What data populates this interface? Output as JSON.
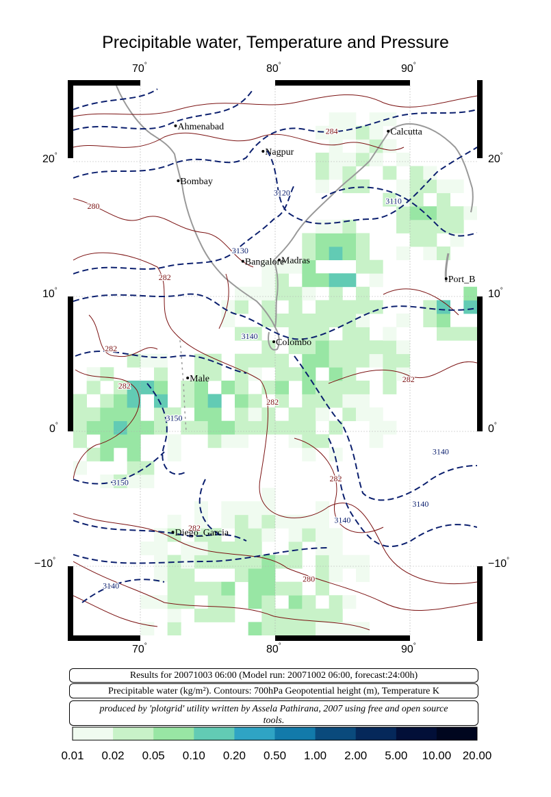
{
  "title": "Precipitable water, Temperature and Pressure",
  "map": {
    "lon_range": [
      65,
      95
    ],
    "lat_range": [
      -15,
      26
    ],
    "lon_ticks": [
      "70",
      "80",
      "90"
    ],
    "lat_ticks_left": [
      "20",
      "10",
      "0",
      "−10"
    ],
    "lat_ticks_right": [
      "20",
      "10",
      "0",
      "−10"
    ],
    "degree_symbol": "°",
    "cities": [
      {
        "name": "Ahmenabad",
        "lon": 72.6,
        "lat": 23.0
      },
      {
        "name": "Nagpur",
        "lon": 79.1,
        "lat": 21.1
      },
      {
        "name": "Calcutta",
        "lon": 88.4,
        "lat": 22.6
      },
      {
        "name": "Bombay",
        "lon": 72.8,
        "lat": 18.9
      },
      {
        "name": "Bangalore",
        "lon": 77.6,
        "lat": 12.9
      },
      {
        "name": "Madras",
        "lon": 80.3,
        "lat": 13.0
      },
      {
        "name": "Port_B",
        "lon": 92.7,
        "lat": 11.6
      },
      {
        "name": "Colombo",
        "lon": 79.9,
        "lat": 6.9
      },
      {
        "name": "Male",
        "lon": 73.5,
        "lat": 4.2
      },
      {
        "name": "Diego_Garcia",
        "lon": 72.4,
        "lat": -7.3
      }
    ],
    "contour_labels": [
      {
        "text": "284",
        "lon": 84.2,
        "lat": 22.4,
        "kind": "temp"
      },
      {
        "text": "280",
        "lon": 66.5,
        "lat": 16.8,
        "kind": "temp"
      },
      {
        "text": "282",
        "lon": 71.8,
        "lat": 11.5,
        "kind": "temp"
      },
      {
        "text": "282",
        "lon": 67.8,
        "lat": 6.2,
        "kind": "temp"
      },
      {
        "text": "282",
        "lon": 68.8,
        "lat": 3.4,
        "kind": "temp"
      },
      {
        "text": "282",
        "lon": 79.8,
        "lat": 2.2,
        "kind": "temp"
      },
      {
        "text": "282",
        "lon": 89.9,
        "lat": 3.9,
        "kind": "temp"
      },
      {
        "text": "282",
        "lon": 84.5,
        "lat": -3.5,
        "kind": "temp"
      },
      {
        "text": "282",
        "lon": 74.0,
        "lat": -7.2,
        "kind": "temp"
      },
      {
        "text": "280",
        "lon": 82.5,
        "lat": -11.0,
        "kind": "temp"
      },
      {
        "text": "3120",
        "lon": 80.5,
        "lat": 17.8,
        "kind": "geo"
      },
      {
        "text": "3110",
        "lon": 88.8,
        "lat": 17.2,
        "kind": "geo"
      },
      {
        "text": "3130",
        "lon": 77.4,
        "lat": 13.5,
        "kind": "geo"
      },
      {
        "text": "3140",
        "lon": 78.1,
        "lat": 7.1,
        "kind": "geo"
      },
      {
        "text": "3150",
        "lon": 72.5,
        "lat": 1.0,
        "kind": "geo"
      },
      {
        "text": "3140",
        "lon": 92.3,
        "lat": -1.5,
        "kind": "geo"
      },
      {
        "text": "3150",
        "lon": 68.5,
        "lat": -3.8,
        "kind": "geo"
      },
      {
        "text": "3140",
        "lon": 90.8,
        "lat": -5.4,
        "kind": "geo"
      },
      {
        "text": "3140",
        "lon": 85.0,
        "lat": -6.6,
        "kind": "geo"
      },
      {
        "text": "3140",
        "lon": 67.8,
        "lat": -11.5,
        "kind": "geo"
      }
    ]
  },
  "info": {
    "results": "Results for 20071003 06:00 (Model run: 20071002 06:00, forecast:24:00h)",
    "legend": "Precipitable water (kg/m²).  Contours: 700hPa Geopotential height (m), Temperature K",
    "credit": "produced by 'plotgrid' utility written by Assela Pathirana, 2007 using free and open source tools."
  },
  "colorbar": {
    "labels": [
      "0.01",
      "0.02",
      "0.05",
      "0.10",
      "0.20",
      "0.50",
      "1.00",
      "2.00",
      "5.00",
      "10.00",
      "20.00"
    ],
    "colors": [
      "#f0fbf0",
      "#c8f2c8",
      "#98e6a4",
      "#62cbb4",
      "#2fa4c4",
      "#127aaa",
      "#0a4a7c",
      "#05285a",
      "#020f38",
      "#00061f"
    ]
  }
}
